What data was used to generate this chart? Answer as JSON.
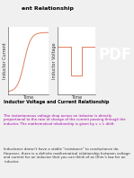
{
  "bg_color": "#f0f0f0",
  "plot_bg": "#ffffff",
  "left_plot": {
    "ylabel": "Inductor Current",
    "xlabel": "Time",
    "line_color": "#e08060",
    "ylabel_fontsize": 3.5,
    "xlabel_fontsize": 3.5
  },
  "right_plot": {
    "ylabel": "Inductor Voltage",
    "xlabel": "Time",
    "line_color": "#e08060",
    "ylabel_fontsize": 3.5,
    "xlabel_fontsize": 3.5
  },
  "body_title": "Inductor Voltage and Current Relationship",
  "body_title_fontsize": 3.5,
  "body_title_color": "#000000",
  "body_text1": "The instantaneous voltage drop across an inductor is directly proportional to the rate of change of the current passing through the inductor. The mathematical relationship is given by v = L di/dt.",
  "body_text1_color": "#aa00aa",
  "body_text2": "Inductance doesn't have a stable \"resistance\" to conductance do. However, there is a definite mathematical relationship between voltage and current for an inductor that you can think of as Ohm's law for an inductor.",
  "body_text2_color": "#333333",
  "body_text_fontsize": 2.8,
  "pdf_bg": "#0d3349",
  "pdf_text": "PDF",
  "pdf_text_color": "#ffffff",
  "pdf_fontsize": 12,
  "corner_box_color": "#ffffff",
  "title_text": "ent Relationship",
  "title_fontsize": 4.5,
  "title_color": "#000000",
  "title_fontweight": "bold"
}
